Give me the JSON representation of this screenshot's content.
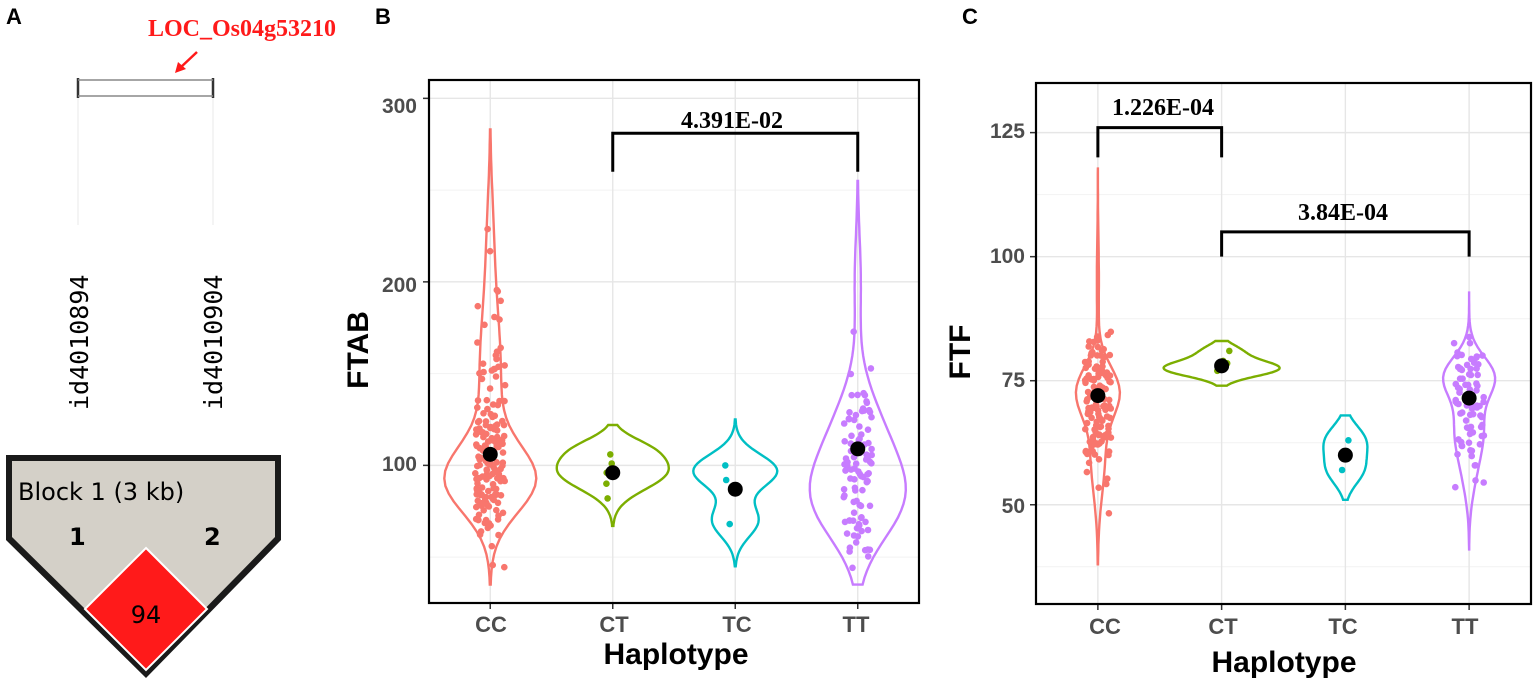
{
  "panel_a": {
    "label": "A",
    "gene": "LOC_Os04g53210",
    "snps": [
      "id4010894",
      "id4010904"
    ],
    "block_title": "Block 1 (3 kb)",
    "marker_numbers": [
      "1",
      "2"
    ],
    "ld_value": "94",
    "colors": {
      "ld_cell": "#ff1a1a",
      "block_bg": "#d4d0c8",
      "gene_text": "#ff1a1a"
    }
  },
  "chart_data": [
    {
      "panel": "B",
      "type": "violin",
      "title": "",
      "xlabel": "Haplotype",
      "ylabel": "FTAB",
      "categories": [
        "CC",
        "CT",
        "TC",
        "TT"
      ],
      "ylim": [
        25,
        310
      ],
      "yticks": [
        "100",
        "200",
        "300"
      ],
      "ytick_values": [
        100,
        200,
        300
      ],
      "means": [
        106,
        96,
        87,
        109
      ],
      "colors": [
        "#f8766d",
        "#7cae00",
        "#00bfc4",
        "#c77cff"
      ],
      "significance": [
        {
          "from": "CT",
          "to": "TT",
          "label": "4.391E-02"
        }
      ]
    },
    {
      "panel": "C",
      "type": "violin",
      "title": "",
      "xlabel": "Haplotype",
      "ylabel": "FTF",
      "categories": [
        "CC",
        "CT",
        "TC",
        "TT"
      ],
      "ylim": [
        30,
        135
      ],
      "yticks": [
        "50",
        "75",
        "100",
        "125"
      ],
      "ytick_values": [
        50,
        75,
        100,
        125
      ],
      "means": [
        72,
        78,
        60,
        71.5
      ],
      "colors": [
        "#f8766d",
        "#7cae00",
        "#00bfc4",
        "#c77cff"
      ],
      "significance": [
        {
          "from": "CC",
          "to": "CT",
          "label": "1.226E-04"
        },
        {
          "from": "CT",
          "to": "TT",
          "label": "3.84E-04"
        }
      ]
    }
  ]
}
